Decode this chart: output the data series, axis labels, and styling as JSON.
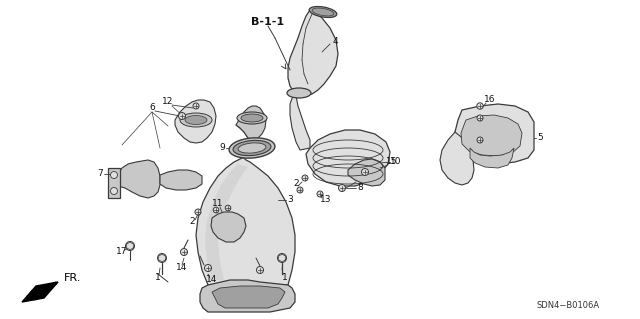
{
  "bg_color": "#ffffff",
  "line_color": "#3a3a3a",
  "shade_color": "#c8c8c8",
  "shade_light": "#e0e0e0",
  "shade_dark": "#a0a0a0",
  "text_color": "#111111",
  "diagram_code": "SDN4−B0106A",
  "section_label": "B-1-1",
  "fr_label": "FR.",
  "figsize": [
    6.4,
    3.19
  ],
  "dpi": 100
}
